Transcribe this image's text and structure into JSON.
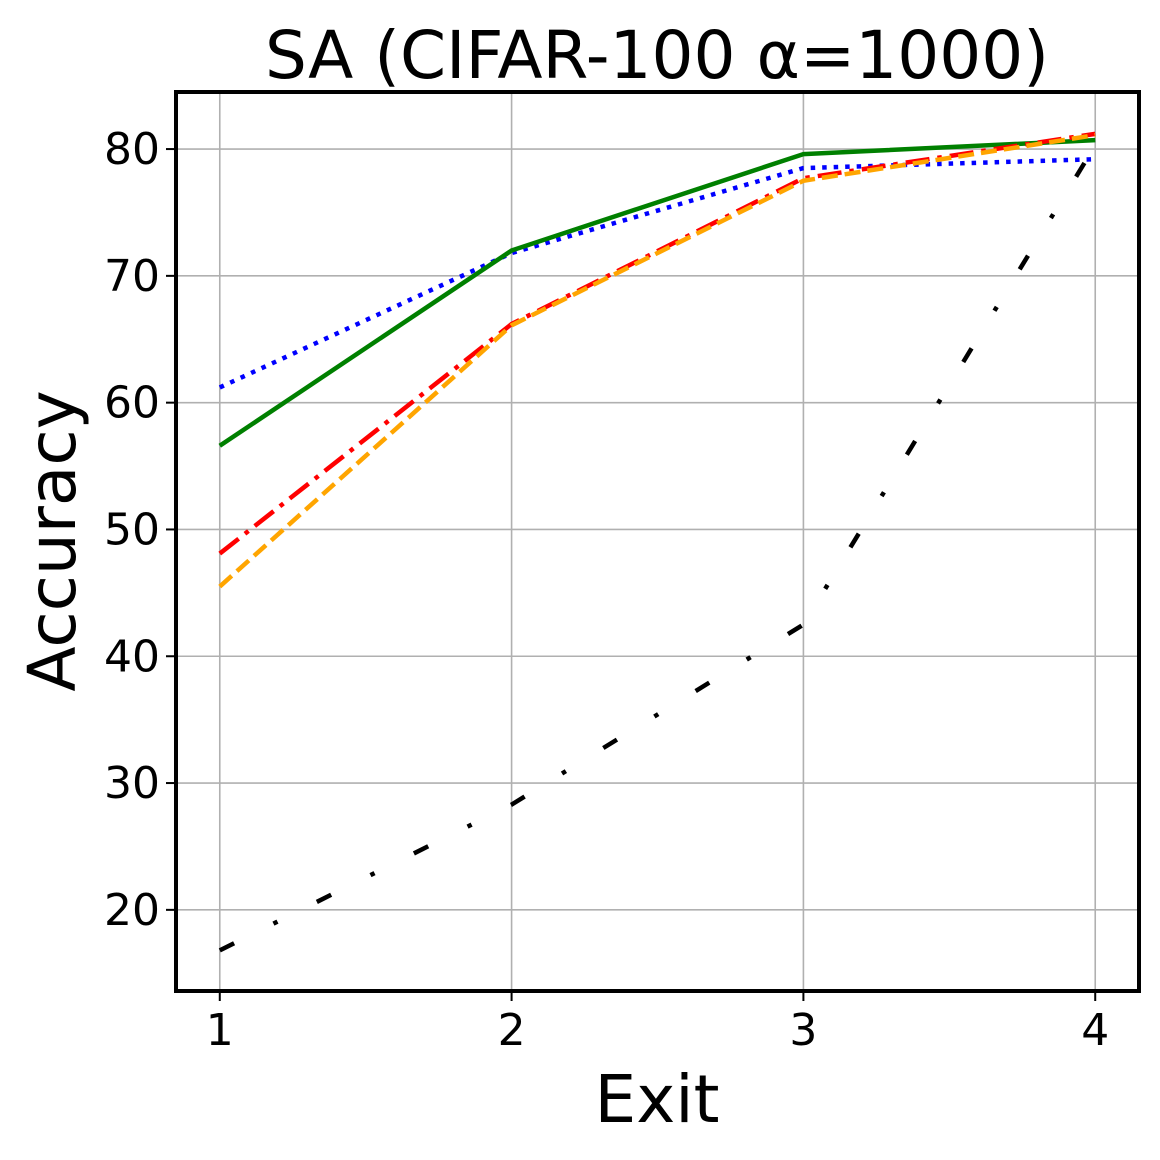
{
  "chart_data": {
    "type": "line",
    "title": "SA (CIFAR-100 α=1000)",
    "xlabel": "Exit",
    "ylabel": "Accuracy",
    "x": [
      1,
      2,
      3,
      4
    ],
    "xlim": [
      0.85,
      4.15
    ],
    "ylim": [
      13.6,
      84.5
    ],
    "xticks": [
      "1",
      "2",
      "3",
      "4"
    ],
    "yticks": [
      "20",
      "30",
      "40",
      "50",
      "60",
      "70",
      "80"
    ],
    "grid": true,
    "legend": "none",
    "series": [
      {
        "color": "#0000ff",
        "dash": "dotted",
        "values": [
          61.2,
          71.8,
          78.5,
          79.2
        ]
      },
      {
        "color": "#008000",
        "dash": "solid",
        "values": [
          56.6,
          72.0,
          79.6,
          80.7
        ]
      },
      {
        "color": "#ff0000",
        "dash": "dashdot",
        "values": [
          48.1,
          66.2,
          77.7,
          81.2
        ]
      },
      {
        "color": "#ffa500",
        "dash": "dashed",
        "values": [
          45.5,
          66.1,
          77.5,
          81.1
        ]
      },
      {
        "color": "#000000",
        "dash": "loosedashdot",
        "values": [
          16.8,
          28.3,
          42.5,
          80.3
        ]
      }
    ]
  }
}
